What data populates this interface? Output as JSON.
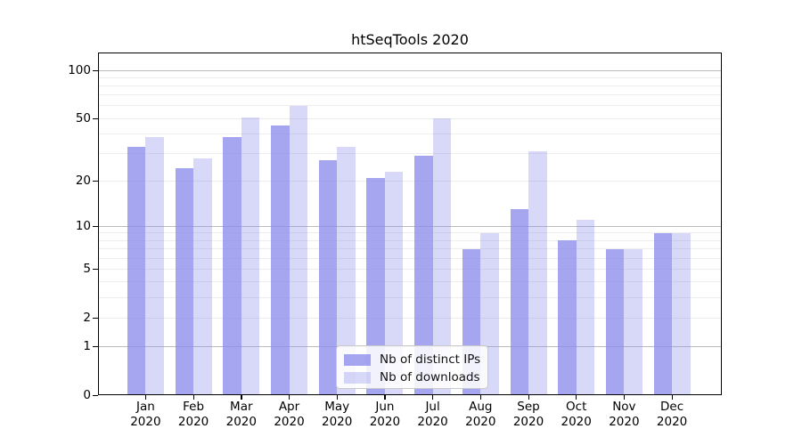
{
  "chart_data": {
    "type": "bar",
    "title": "htSeqTools 2020",
    "categories": [
      "Jan",
      "Feb",
      "Mar",
      "Apr",
      "May",
      "Jun",
      "Jul",
      "Aug",
      "Sep",
      "Oct",
      "Nov",
      "Dec"
    ],
    "category_year": "2020",
    "series": [
      {
        "name": "Nb of distinct IPs",
        "color": "#8c8cec",
        "alpha": 0.78,
        "values": [
          33,
          24,
          38,
          45,
          27,
          21,
          29,
          7,
          13,
          8,
          7,
          9
        ]
      },
      {
        "name": "Nb of downloads",
        "color": "#8c8cec",
        "alpha": 0.34,
        "values": [
          38,
          28,
          51,
          60,
          33,
          23,
          50,
          9,
          31,
          11,
          7,
          9
        ]
      }
    ],
    "y_axis": {
      "scale": "log10(1+value)",
      "tick_values": [
        0,
        1,
        2,
        5,
        10,
        20,
        50,
        100
      ],
      "max": 100,
      "major_grid_values": [
        1,
        10,
        100
      ],
      "minor_grid_values": [
        2,
        3,
        4,
        5,
        6,
        7,
        8,
        9,
        20,
        30,
        40,
        50,
        60,
        70,
        80,
        90
      ]
    },
    "x_axis": {
      "label_format": "month over year, two lines"
    },
    "legend": {
      "position": "bottom-center",
      "entries": [
        "Nb of distinct IPs",
        "Nb of downloads"
      ]
    },
    "grid": true,
    "colors": {
      "minor_grid": "#ececec",
      "major_grid": "#bbbbbb",
      "spine": "#000000",
      "background": "#ffffff"
    }
  }
}
